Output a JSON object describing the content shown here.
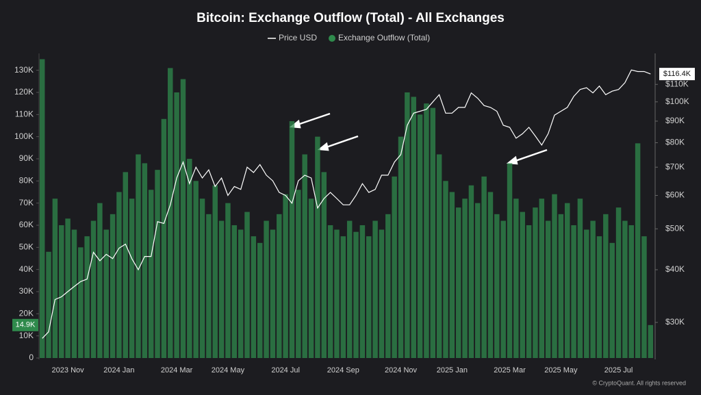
{
  "chart_data": {
    "type": "bar",
    "title": "Bitcoin: Exchange Outflow (Total) - All Exchanges",
    "categories": [
      null,
      null,
      null,
      null,
      "2023 Nov",
      null,
      null,
      null,
      null,
      null,
      null,
      null,
      "2024 Jan",
      null,
      null,
      null,
      null,
      null,
      null,
      null,
      null,
      "2024 Mar",
      null,
      null,
      null,
      null,
      null,
      null,
      null,
      "2024 May",
      null,
      null,
      null,
      null,
      null,
      null,
      null,
      null,
      "2024 Jul",
      null,
      null,
      null,
      null,
      null,
      null,
      null,
      null,
      "2024 Sep",
      null,
      null,
      null,
      null,
      null,
      null,
      null,
      null,
      "2024 Nov",
      null,
      null,
      null,
      null,
      null,
      null,
      null,
      "2025 Jan",
      null,
      null,
      null,
      null,
      null,
      null,
      null,
      null,
      "2025 Mar",
      null,
      null,
      null,
      null,
      null,
      null,
      null,
      "2025 May",
      null,
      null,
      null,
      null,
      null,
      null,
      null,
      null,
      "2025 Jul",
      null,
      null,
      null,
      null,
      null
    ],
    "series": [
      {
        "name": "Exchange Outflow (Total)",
        "color": "#2f8a4c",
        "current_label": "14.9K",
        "values": [
          135000,
          48000,
          72000,
          60000,
          63000,
          58000,
          50000,
          55000,
          62000,
          70000,
          58000,
          65000,
          75000,
          84000,
          72000,
          92000,
          88000,
          76000,
          85000,
          108000,
          131000,
          120000,
          126000,
          90000,
          80000,
          72000,
          65000,
          78000,
          62000,
          70000,
          60000,
          58000,
          66000,
          55000,
          52000,
          62000,
          58000,
          65000,
          74000,
          107000,
          76000,
          92000,
          72000,
          100000,
          84000,
          60000,
          58000,
          55000,
          62000,
          57000,
          60000,
          55000,
          62000,
          58000,
          65000,
          82000,
          100000,
          120000,
          118000,
          110000,
          115000,
          113000,
          92000,
          80000,
          75000,
          68000,
          72000,
          78000,
          70000,
          82000,
          75000,
          65000,
          62000,
          88000,
          72000,
          66000,
          60000,
          68000,
          72000,
          62000,
          74000,
          65000,
          70000,
          60000,
          72000,
          58000,
          62000,
          55000,
          65000,
          52000,
          68000,
          62000,
          60000,
          97000,
          55000,
          14900
        ]
      },
      {
        "name": "Price USD",
        "color": "#ffffff",
        "axis": "y2",
        "type": "line",
        "current_label": "$116.4K",
        "values": [
          27500,
          28500,
          34000,
          34500,
          35500,
          36500,
          37500,
          38000,
          44000,
          42000,
          43500,
          42500,
          45000,
          46000,
          42500,
          40000,
          43000,
          43000,
          52000,
          51500,
          57000,
          66000,
          72000,
          64000,
          70000,
          66000,
          69000,
          63000,
          66000,
          60000,
          63000,
          62000,
          70000,
          68000,
          71000,
          67000,
          65000,
          61000,
          60000,
          57500,
          65000,
          67000,
          66000,
          56000,
          59000,
          61000,
          59000,
          57000,
          57000,
          60000,
          64000,
          61000,
          62000,
          67000,
          67000,
          72000,
          75000,
          88000,
          94000,
          95000,
          96000,
          100000,
          104000,
          94000,
          94000,
          97000,
          97000,
          105000,
          102000,
          98000,
          97000,
          95000,
          88000,
          87000,
          82000,
          84000,
          87000,
          83000,
          79000,
          84000,
          93000,
          95000,
          97000,
          103000,
          107000,
          108000,
          105000,
          109000,
          104000,
          106000,
          107000,
          111000,
          119000,
          118000,
          118000,
          116400
        ]
      }
    ],
    "ylim": [
      0,
      137000
    ],
    "yticks": [
      0,
      {
        "value": 10000,
        "label": "10K"
      },
      {
        "value": 20000,
        "label": "20K"
      },
      {
        "value": 30000,
        "label": "30K"
      },
      {
        "value": 40000,
        "label": "40K"
      },
      {
        "value": 50000,
        "label": "50K"
      },
      {
        "value": 60000,
        "label": "60K"
      },
      {
        "value": 70000,
        "label": "70K"
      },
      {
        "value": 80000,
        "label": "80K"
      },
      {
        "value": 90000,
        "label": "90K"
      },
      {
        "value": 100000,
        "label": "100K"
      },
      {
        "value": 110000,
        "label": "110K"
      },
      {
        "value": 120000,
        "label": "120K"
      },
      {
        "value": 130000,
        "label": "130K"
      }
    ],
    "y2lim": [
      24700,
      129300
    ],
    "y2log": true,
    "y2ticks": [
      {
        "value": 30000,
        "label": "$30K"
      },
      {
        "value": 40000,
        "label": "$40K"
      },
      {
        "value": 50000,
        "label": "$50K"
      },
      {
        "value": 60000,
        "label": "$60K"
      },
      {
        "value": 70000,
        "label": "$70K"
      },
      {
        "value": 80000,
        "label": "$80K"
      },
      {
        "value": 90000,
        "label": "$90K"
      },
      {
        "value": 100000,
        "label": "$100K"
      },
      {
        "value": 110000,
        "label": "$110K"
      }
    ],
    "grid": false,
    "copyright": "© CryptoQuant. All rights reserved"
  }
}
